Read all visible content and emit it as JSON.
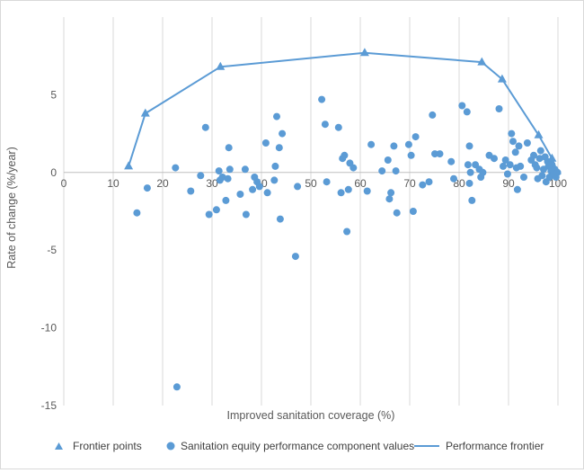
{
  "chart_data": {
    "type": "scatter",
    "title": "",
    "xlabel": "Improved sanitation coverage (%)",
    "ylabel": "Rate of change (%/year)",
    "xlim": [
      0,
      100
    ],
    "ylim": [
      -15,
      10
    ],
    "x_ticks": [
      0,
      10,
      20,
      30,
      40,
      50,
      60,
      70,
      80,
      90,
      100
    ],
    "y_ticks": [
      -15,
      -10,
      -5,
      0,
      5
    ],
    "grid": "vertical",
    "legend_position": "bottom",
    "colors": {
      "series": "#5b9bd5",
      "grid": "#d9d9d9",
      "text": "#595959"
    },
    "series": [
      {
        "name": "Frontier points",
        "marker": "triangle",
        "points": [
          [
            13.1,
            0.4
          ],
          [
            16.5,
            3.8
          ],
          [
            31.7,
            6.8
          ],
          [
            60.9,
            7.7
          ],
          [
            84.6,
            7.1
          ],
          [
            88.7,
            6.0
          ],
          [
            96.1,
            2.4
          ],
          [
            98.8,
            0.9
          ],
          [
            99.8,
            0.1
          ]
        ]
      },
      {
        "name": "Sanitation equity performance component values",
        "marker": "circle",
        "points": [
          [
            14.8,
            -2.6
          ],
          [
            16.9,
            -1.0
          ],
          [
            22.6,
            0.3
          ],
          [
            22.9,
            -13.8
          ],
          [
            25.7,
            -1.2
          ],
          [
            27.7,
            -0.2
          ],
          [
            28.7,
            2.9
          ],
          [
            29.4,
            -2.7
          ],
          [
            30.9,
            -2.4
          ],
          [
            31.4,
            0.1
          ],
          [
            31.6,
            -0.5
          ],
          [
            32.1,
            -0.3
          ],
          [
            32.8,
            -1.8
          ],
          [
            33.2,
            -0.4
          ],
          [
            33.4,
            1.6
          ],
          [
            33.6,
            0.2
          ],
          [
            35.7,
            -1.4
          ],
          [
            36.7,
            0.2
          ],
          [
            36.9,
            -2.7
          ],
          [
            38.2,
            -1.1
          ],
          [
            38.6,
            -0.3
          ],
          [
            39.1,
            -0.6
          ],
          [
            39.6,
            -0.9
          ],
          [
            40.9,
            1.9
          ],
          [
            41.2,
            -1.3
          ],
          [
            42.6,
            -0.5
          ],
          [
            42.8,
            0.4
          ],
          [
            43.1,
            3.6
          ],
          [
            43.6,
            1.6
          ],
          [
            43.8,
            -3.0
          ],
          [
            44.2,
            2.5
          ],
          [
            46.9,
            -5.4
          ],
          [
            47.3,
            -0.9
          ],
          [
            52.2,
            4.7
          ],
          [
            52.9,
            3.1
          ],
          [
            53.2,
            -0.6
          ],
          [
            55.6,
            2.9
          ],
          [
            56.1,
            -1.3
          ],
          [
            56.4,
            0.9
          ],
          [
            56.8,
            1.1
          ],
          [
            57.3,
            -3.8
          ],
          [
            57.6,
            -1.1
          ],
          [
            57.9,
            0.6
          ],
          [
            58.6,
            0.3
          ],
          [
            61.4,
            -1.2
          ],
          [
            62.2,
            1.8
          ],
          [
            64.4,
            0.1
          ],
          [
            65.6,
            0.8
          ],
          [
            65.9,
            -1.7
          ],
          [
            66.2,
            -1.3
          ],
          [
            66.8,
            1.7
          ],
          [
            67.2,
            0.1
          ],
          [
            67.4,
            -2.6
          ],
          [
            69.8,
            1.8
          ],
          [
            70.3,
            1.1
          ],
          [
            70.7,
            -2.5
          ],
          [
            71.2,
            2.3
          ],
          [
            72.6,
            -0.8
          ],
          [
            73.9,
            -0.6
          ],
          [
            74.6,
            3.7
          ],
          [
            75.1,
            1.2
          ],
          [
            76.1,
            1.2
          ],
          [
            78.4,
            0.7
          ],
          [
            78.9,
            -0.4
          ],
          [
            80.6,
            4.3
          ],
          [
            81.6,
            3.9
          ],
          [
            81.8,
            0.5
          ],
          [
            82.1,
            1.7
          ],
          [
            82.1,
            -0.7
          ],
          [
            82.3,
            0.0
          ],
          [
            82.6,
            -1.8
          ],
          [
            83.3,
            0.5
          ],
          [
            84.1,
            0.2
          ],
          [
            84.4,
            -0.3
          ],
          [
            84.8,
            0.0
          ],
          [
            86.1,
            1.1
          ],
          [
            87.1,
            0.9
          ],
          [
            88.1,
            4.1
          ],
          [
            88.9,
            0.4
          ],
          [
            89.4,
            0.8
          ],
          [
            89.8,
            -0.1
          ],
          [
            90.3,
            0.5
          ],
          [
            90.6,
            2.5
          ],
          [
            90.9,
            2.0
          ],
          [
            91.4,
            1.3
          ],
          [
            91.6,
            0.3
          ],
          [
            91.8,
            -1.1
          ],
          [
            92.1,
            1.7
          ],
          [
            92.4,
            0.4
          ],
          [
            93.1,
            -0.3
          ],
          [
            93.8,
            1.9
          ],
          [
            94.6,
            0.8
          ],
          [
            95.1,
            1.1
          ],
          [
            95.4,
            0.5
          ],
          [
            95.7,
            0.3
          ],
          [
            95.9,
            -0.4
          ],
          [
            96.3,
            0.9
          ],
          [
            96.5,
            1.4
          ],
          [
            96.8,
            -0.2
          ],
          [
            97.1,
            0.2
          ],
          [
            97.4,
            1.0
          ],
          [
            97.6,
            -0.6
          ],
          [
            97.9,
            0.7
          ],
          [
            98.1,
            0.4
          ],
          [
            98.3,
            -0.3
          ],
          [
            98.6,
            0.1
          ],
          [
            98.8,
            0.5
          ],
          [
            99.1,
            -0.1
          ],
          [
            99.3,
            0.2
          ],
          [
            99.6,
            -0.3
          ],
          [
            99.9,
            0.0
          ]
        ]
      },
      {
        "name": "Performance frontier",
        "marker": "line",
        "points": [
          [
            13.1,
            0.4
          ],
          [
            16.5,
            3.8
          ],
          [
            31.7,
            6.8
          ],
          [
            60.9,
            7.7
          ],
          [
            84.6,
            7.1
          ],
          [
            88.7,
            6.0
          ],
          [
            96.1,
            2.4
          ],
          [
            98.8,
            0.9
          ],
          [
            99.8,
            0.1
          ]
        ]
      }
    ]
  }
}
